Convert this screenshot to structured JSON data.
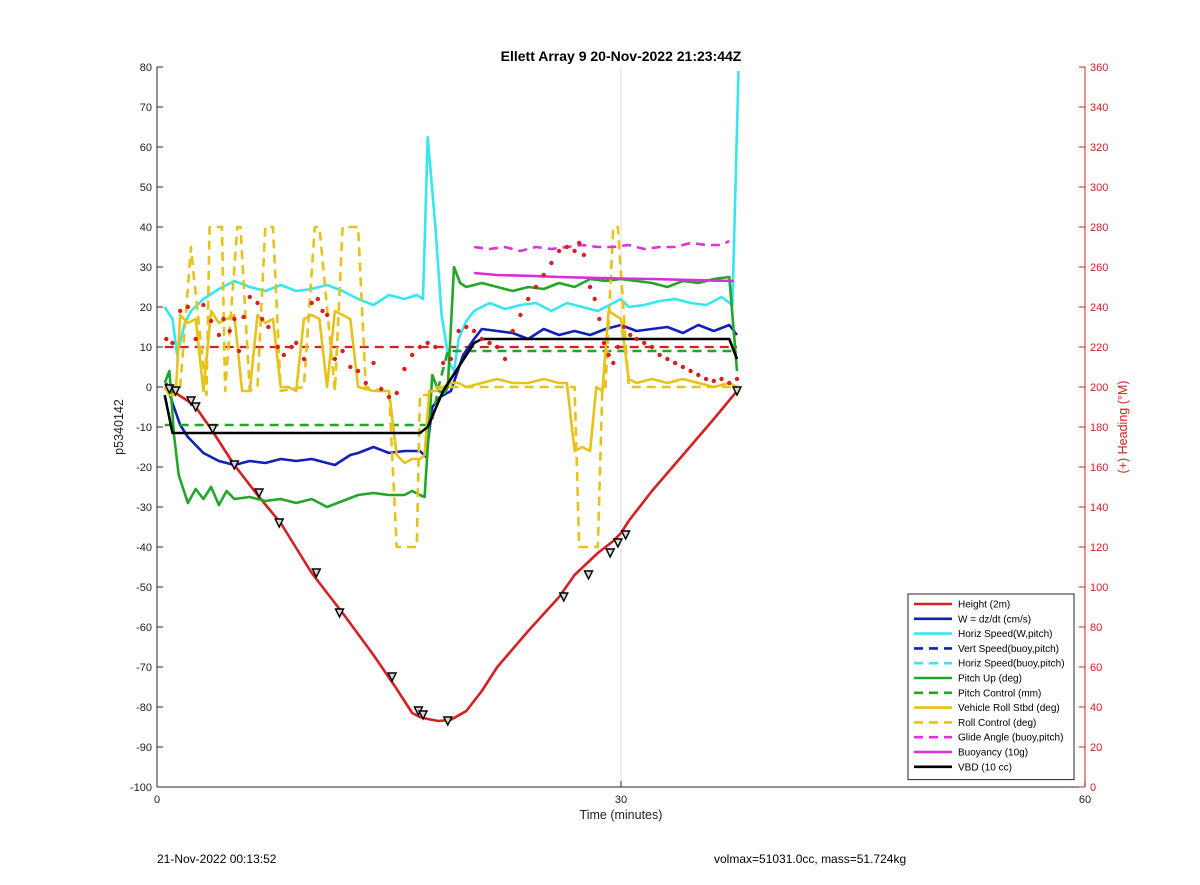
{
  "chart_data": {
    "type": "line",
    "title": "Ellett Array 9 20-Nov-2022 21:23:44Z",
    "xlabel": "Time (minutes)",
    "ylabel_left": "p5340142",
    "ylabel_right": "(+) Heading (°M)",
    "xlim": [
      0,
      60
    ],
    "ylim_left": [
      -100,
      80
    ],
    "ylim_right": [
      0,
      360
    ],
    "x_ticks": [
      0,
      30,
      60
    ],
    "y_ticks_left": [
      80,
      70,
      60,
      50,
      40,
      30,
      20,
      10,
      0,
      -10,
      -20,
      -30,
      -40,
      -50,
      -60,
      -70,
      -80,
      -90,
      -100
    ],
    "y_ticks_right": [
      360,
      340,
      320,
      300,
      280,
      260,
      240,
      220,
      200,
      180,
      160,
      140,
      120,
      100,
      80,
      60,
      40,
      20,
      0
    ],
    "grid": "vertical only",
    "legend_position": "bottom-right",
    "colors": {
      "height": "#d62020",
      "w": "#1020b8",
      "horiz_speed": "#36e6f0",
      "pitch_up": "#22a628",
      "roll": "#e6c21a",
      "glide": "#e030e0",
      "buoyancy": "#d830d8",
      "vbd": "#000000",
      "heading": "#d62020",
      "right_axis": "#d62020"
    },
    "series": [
      {
        "name": "Height (2m)",
        "color": "#d62020",
        "style": "solid",
        "x": [
          0.5,
          0.8,
          1.2,
          2.0,
          2.5,
          3.5,
          5.0,
          6.5,
          8.0,
          10.0,
          12.0,
          14.0,
          15.5,
          16.5,
          17.0,
          17.5,
          18.2,
          19.0,
          20.0,
          21.0,
          22.0,
          24.0,
          26.0,
          27.0,
          28.5,
          29.5,
          30.0,
          30.5,
          32.0,
          34.0,
          36.0,
          37.5
        ],
        "y": [
          -0.5,
          -0.8,
          -1.5,
          -3.5,
          -5.0,
          -10.5,
          -19.5,
          -27.0,
          -34.0,
          -46.5,
          -56.5,
          -67.0,
          -75.5,
          -81.5,
          -82.5,
          -83.0,
          -83.5,
          -83.2,
          -81.0,
          -76.0,
          -70.0,
          -61.0,
          -52.5,
          -47.0,
          -41.5,
          -38.5,
          -36.5,
          -33.5,
          -26.0,
          -17.0,
          -8.0,
          -1.0
        ]
      },
      {
        "name": "W = dz/dt (cm/s)",
        "color": "#1020b8",
        "style": "solid",
        "x": [
          0.6,
          1.0,
          1.5,
          2.0,
          3.0,
          4.0,
          5.0,
          6.0,
          7.0,
          8.0,
          9.0,
          10.0,
          11.0,
          11.5,
          12.5,
          13.0,
          14.0,
          15.0,
          16.0,
          17.0,
          17.4,
          17.8,
          18.3,
          19.0,
          19.8,
          20.5,
          21.0,
          22.0,
          23.0,
          24.0,
          25.0,
          26.0,
          27.0,
          28.0,
          29.0,
          30.0,
          31.0,
          32.0,
          33.0,
          34.0,
          35.0,
          36.0,
          37.0,
          37.5
        ],
        "y": [
          1.0,
          -4.0,
          -9.5,
          -12.5,
          -16.5,
          -18.5,
          -19.5,
          -18.5,
          -19.0,
          -18.0,
          -18.5,
          -18.0,
          -19.0,
          -19.5,
          -17.0,
          -16.5,
          -15.0,
          -16.5,
          -16.0,
          -16.0,
          -17.5,
          -5.0,
          -2.5,
          -1.0,
          8.0,
          12.0,
          14.5,
          14.0,
          13.5,
          12.0,
          14.5,
          13.0,
          14.0,
          13.0,
          14.5,
          15.5,
          14.0,
          14.5,
          15.0,
          13.5,
          15.5,
          14.0,
          15.5,
          13.0
        ]
      },
      {
        "name": "Horiz Speed(W,pitch)",
        "color": "#36e6f0",
        "style": "solid",
        "x": [
          0.5,
          1.0,
          1.3,
          1.8,
          2.2,
          3.0,
          4.0,
          5.0,
          6.0,
          7.0,
          8.0,
          9.0,
          10.0,
          11.0,
          12.0,
          13.0,
          14.0,
          15.0,
          16.0,
          16.8,
          17.2,
          17.5,
          18.0,
          18.4,
          18.9,
          19.2,
          19.5,
          20.0,
          20.5,
          21.0,
          21.5,
          22.5,
          23.5,
          24.5,
          25.5,
          26.5,
          27.5,
          28.5,
          29.5,
          30.0,
          30.5,
          31.5,
          32.5,
          33.5,
          34.5,
          35.5,
          36.5,
          37.2,
          37.6
        ],
        "y": [
          20.0,
          17.0,
          8.0,
          16.0,
          19.0,
          22.0,
          24.5,
          26.5,
          25.0,
          24.0,
          25.5,
          24.0,
          24.5,
          25.5,
          24.0,
          22.0,
          20.5,
          23.0,
          22.0,
          23.0,
          22.0,
          62.5,
          40.0,
          18.0,
          6.0,
          4.0,
          12.0,
          16.5,
          19.0,
          20.0,
          21.0,
          19.5,
          20.5,
          21.0,
          19.0,
          21.0,
          20.0,
          19.0,
          21.0,
          22.0,
          20.0,
          20.5,
          21.5,
          22.0,
          21.0,
          20.5,
          22.5,
          20.5,
          79.0
        ]
      },
      {
        "name": "Vert Speed(buoy,pitch)",
        "color": "#1020b8",
        "style": "dashed",
        "x": [],
        "y": []
      },
      {
        "name": "Horiz Speed(buoy,pitch)",
        "color": "#36e6f0",
        "style": "dashed",
        "x": [],
        "y": []
      },
      {
        "name": "Pitch Up (deg)",
        "color": "#22a628",
        "style": "solid",
        "x": [
          0.5,
          0.8,
          1.1,
          1.4,
          2.0,
          2.5,
          3.0,
          3.5,
          4.0,
          4.5,
          5.0,
          6.0,
          7.0,
          8.0,
          9.0,
          10.0,
          11.0,
          12.0,
          13.0,
          14.0,
          15.0,
          16.0,
          16.5,
          17.0,
          17.3,
          17.8,
          18.2,
          18.6,
          18.8,
          19.2,
          19.6,
          20.0,
          21.0,
          22.0,
          23.0,
          24.0,
          25.0,
          26.0,
          27.0,
          28.0,
          29.0,
          30.0,
          31.0,
          32.0,
          33.0,
          34.0,
          35.0,
          36.0,
          37.0,
          37.5
        ],
        "y": [
          1.0,
          4.0,
          -12.0,
          -22.0,
          -29.0,
          -25.5,
          -28.0,
          -25.0,
          -29.5,
          -26.0,
          -28.0,
          -27.5,
          -28.5,
          -28.0,
          -29.0,
          -28.0,
          -30.0,
          -28.5,
          -27.0,
          -26.5,
          -27.0,
          -27.0,
          -26.0,
          -27.0,
          -27.5,
          3.0,
          -1.0,
          -1.5,
          0.0,
          30.0,
          26.0,
          25.0,
          26.0,
          25.0,
          24.0,
          25.0,
          24.5,
          26.0,
          25.0,
          27.0,
          26.5,
          27.0,
          26.5,
          26.0,
          25.0,
          26.5,
          26.0,
          27.0,
          27.5,
          4.0
        ]
      },
      {
        "name": "Pitch Control (mm)",
        "color": "#22a628",
        "style": "dashed",
        "x": [
          0.5,
          1.0,
          17.5,
          17.8,
          18.2,
          18.8,
          37.5
        ],
        "y": [
          -9.5,
          -9.5,
          -9.5,
          -8.0,
          0.0,
          9.0,
          9.0
        ]
      },
      {
        "name": "Vehicle Roll Stbd (deg)",
        "color": "#e6c21a",
        "style": "solid",
        "x": [
          0.5,
          0.8,
          1.2,
          1.5,
          2.0,
          2.5,
          3.0,
          3.5,
          4.0,
          4.5,
          5.0,
          5.5,
          6.0,
          6.5,
          7.0,
          7.5,
          8.0,
          8.5,
          9.0,
          9.5,
          10.0,
          10.5,
          11.0,
          11.5,
          12.0,
          12.5,
          13.0,
          14.0,
          15.0,
          15.5,
          16.0,
          16.5,
          17.0,
          17.3,
          17.6,
          18.0,
          18.5,
          19.0,
          19.5,
          20.0,
          21.0,
          22.0,
          23.0,
          24.0,
          25.0,
          26.0,
          26.5,
          27.0,
          27.5,
          28.0,
          28.4,
          28.8,
          29.2,
          29.6,
          30.0,
          30.5,
          31.0,
          32.0,
          33.0,
          34.0,
          35.0,
          36.0,
          37.0,
          37.5
        ],
        "y": [
          0.0,
          -2.0,
          -2.0,
          18.0,
          16.0,
          17.0,
          -1.0,
          19.0,
          16.0,
          17.0,
          18.0,
          -1.0,
          -1.0,
          18.0,
          16.0,
          17.0,
          0.0,
          0.0,
          -1.0,
          17.0,
          18.0,
          17.0,
          0.0,
          19.0,
          18.0,
          17.0,
          0.0,
          -1.0,
          -1.0,
          -17.0,
          -19.0,
          -18.0,
          -18.0,
          -17.0,
          -1.0,
          -1.0,
          0.0,
          1.0,
          1.0,
          0.0,
          1.0,
          2.0,
          1.0,
          1.0,
          2.0,
          1.0,
          1.0,
          -16.0,
          -15.0,
          -16.0,
          0.0,
          -1.0,
          19.0,
          18.0,
          17.0,
          2.0,
          1.0,
          2.0,
          1.0,
          2.0,
          1.0,
          0.0,
          1.0,
          0.0
        ]
      },
      {
        "name": "Roll Control (deg)",
        "color": "#e6c21a",
        "style": "dashed",
        "x": [
          0.5,
          1.5,
          2.2,
          2.4,
          3.2,
          3.4,
          4.2,
          4.4,
          5.2,
          5.4,
          6.0,
          6.5,
          7.0,
          7.5,
          8.0,
          9.5,
          10.2,
          10.5,
          11.5,
          12.0,
          13.0,
          13.5,
          14.5,
          15.0,
          15.5,
          15.8,
          16.5,
          16.8,
          17.0,
          17.5,
          18.0,
          27.0,
          27.3,
          27.5,
          28.5,
          28.8,
          29.0,
          29.5,
          29.8,
          30.5,
          30.8,
          37.5
        ],
        "y": [
          0.0,
          0.0,
          35.0,
          27.0,
          -2.0,
          40.0,
          40.0,
          -1.0,
          40.0,
          40.0,
          -1.0,
          0.0,
          40.0,
          40.0,
          -1.0,
          0.0,
          40.0,
          40.0,
          -1.0,
          40.0,
          40.0,
          0.0,
          -1.0,
          -1.0,
          -40.0,
          -40.0,
          -40.0,
          -40.0,
          -2.0,
          -2.0,
          0.0,
          0.0,
          -40.0,
          -40.0,
          -40.0,
          0.0,
          0.0,
          40.0,
          40.0,
          0.0,
          0.0,
          0.0
        ]
      },
      {
        "name": "Glide Angle (buoy,pitch)",
        "color": "#e030e0",
        "style": "dashed",
        "x": [
          20.5,
          21.5,
          22.5,
          23.5,
          24.5,
          25.5,
          26.5,
          27.5,
          28.5,
          29.5,
          30.5,
          31.5,
          32.5,
          33.5,
          34.5,
          35.5,
          36.5,
          37.0
        ],
        "y": [
          35.0,
          34.5,
          35.0,
          34.0,
          35.0,
          34.5,
          35.0,
          35.5,
          35.0,
          35.0,
          35.5,
          34.5,
          35.0,
          35.0,
          36.0,
          35.5,
          35.5,
          36.5
        ]
      },
      {
        "name": "Buoyancy (10g)",
        "color": "#d830d8",
        "style": "solid",
        "x": [
          20.5,
          22.0,
          24.0,
          26.0,
          28.0,
          30.0,
          32.0,
          34.0,
          36.0,
          37.3
        ],
        "y": [
          28.5,
          28.0,
          27.8,
          27.5,
          27.3,
          27.1,
          27.0,
          26.8,
          26.6,
          26.5
        ]
      },
      {
        "name": "VBD (10 cc)",
        "color": "#000000",
        "style": "solid",
        "x": [
          0.5,
          1.0,
          17.0,
          17.5,
          18.5,
          19.5,
          20.5,
          21.0,
          37.0,
          37.5
        ],
        "y": [
          -2.0,
          -11.5,
          -11.5,
          -10.0,
          -1.0,
          5.0,
          11.0,
          12.0,
          12.0,
          7.0
        ]
      }
    ],
    "reference_lines": [
      {
        "color": "#d62020",
        "style": "dashed",
        "y_right": 220,
        "x": [
          0.5,
          37.5
        ]
      }
    ],
    "heading_points": {
      "color": "#d62020",
      "axis": "right",
      "x": [
        0.6,
        1.0,
        1.5,
        2.0,
        2.5,
        3.0,
        3.5,
        4.0,
        4.3,
        4.7,
        5.0,
        5.3,
        5.6,
        6.0,
        6.5,
        6.8,
        7.2,
        7.8,
        8.2,
        8.7,
        9.0,
        9.5,
        10.0,
        10.4,
        10.7,
        11.0,
        11.5,
        12.0,
        12.5,
        13.0,
        13.5,
        14.0,
        14.5,
        15.0,
        15.5,
        16.0,
        16.5,
        17.0,
        17.5,
        18.0,
        18.5,
        19.0,
        19.5,
        20.0,
        20.5,
        21.0,
        21.5,
        22.0,
        22.5,
        23.0,
        23.5,
        24.0,
        24.5,
        25.0,
        25.5,
        26.0,
        26.5,
        27.0,
        27.3,
        27.6,
        28.0,
        28.3,
        28.6,
        28.9,
        29.2,
        29.5,
        29.8,
        30.2,
        30.6,
        31.0,
        31.5,
        32.0,
        32.5,
        33.0,
        33.5,
        34.0,
        34.5,
        35.0,
        35.5,
        36.0,
        36.5,
        37.0,
        37.5
      ],
      "y": [
        224,
        222,
        238,
        240,
        224,
        241,
        233,
        226,
        234,
        228,
        234,
        218,
        235,
        245,
        242,
        234,
        230,
        220,
        216,
        220,
        222,
        214,
        242,
        244,
        238,
        236,
        214,
        218,
        210,
        208,
        202,
        212,
        199,
        195,
        197,
        209,
        216,
        220,
        222,
        220,
        212,
        214,
        228,
        230,
        228,
        224,
        222,
        220,
        214,
        228,
        236,
        244,
        250,
        256,
        262,
        268,
        270,
        268,
        272,
        266,
        250,
        244,
        234,
        222,
        216,
        212,
        220,
        230,
        226,
        224,
        222,
        220,
        216,
        214,
        212,
        210,
        208,
        206,
        204,
        203,
        204,
        202,
        204
      ]
    },
    "markers": {
      "shape": "triangle",
      "color": "#000000",
      "x": [
        0.8,
        1.2,
        2.2,
        2.5,
        3.6,
        5.0,
        6.6,
        7.9,
        10.3,
        11.8,
        15.2,
        16.9,
        17.2,
        18.8,
        26.3,
        27.9,
        29.3,
        29.8,
        30.3,
        37.5
      ],
      "y": [
        -0.5,
        -1.0,
        -3.5,
        -5.0,
        -10.5,
        -19.5,
        -26.5,
        -34.0,
        -46.5,
        -56.5,
        -72.5,
        -81.0,
        -82.0,
        -83.5,
        -52.5,
        -47.0,
        -41.5,
        -39.0,
        -37.0,
        -1.0
      ]
    }
  },
  "footer": {
    "left": "21-Nov-2022 00:13:52",
    "right": "volmax=51031.0cc, mass=51.724kg"
  }
}
